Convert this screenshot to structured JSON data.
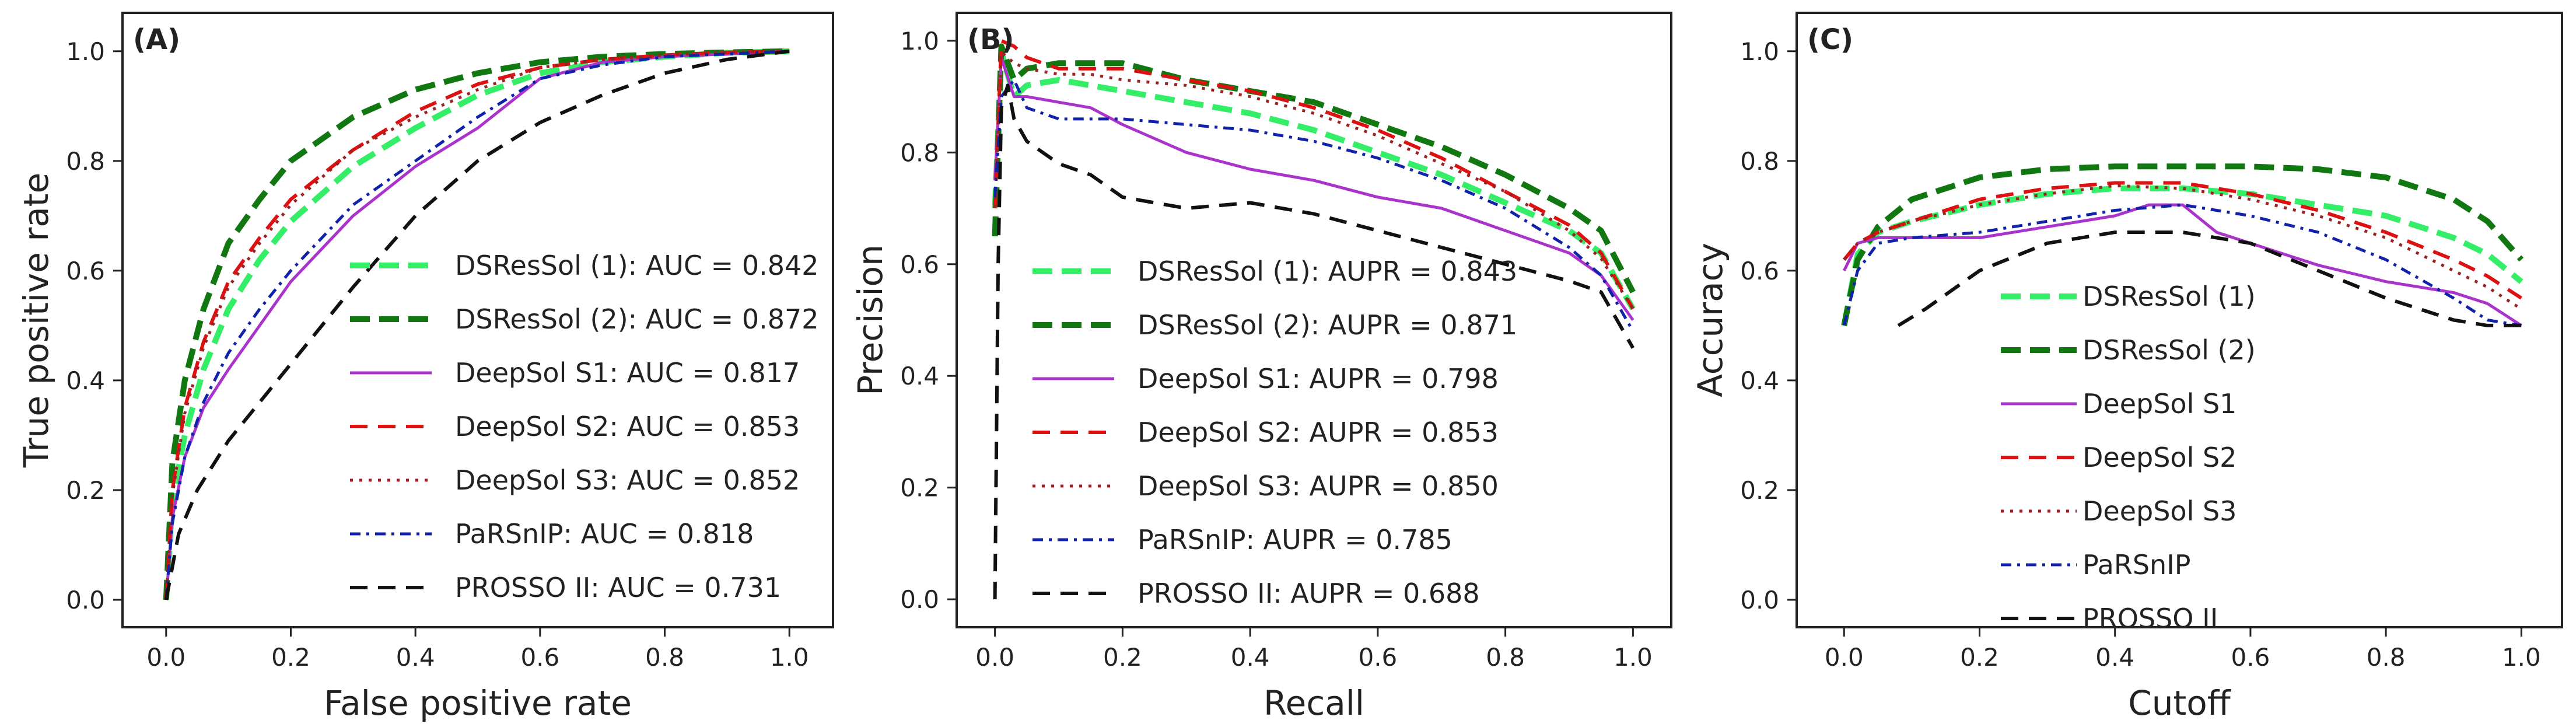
{
  "chart_data": [
    {
      "type": "line",
      "panel": "(A)",
      "xlabel": "False positive rate",
      "ylabel": "True positive rate",
      "xlim": [
        -0.07,
        1.07
      ],
      "ylim": [
        -0.05,
        1.07
      ],
      "xticks": [
        "0.0",
        "0.2",
        "0.4",
        "0.6",
        "0.8",
        "1.0"
      ],
      "yticks": [
        "0.0",
        "0.2",
        "0.4",
        "0.6",
        "0.8",
        "1.0"
      ],
      "legend_position": "bottom-right",
      "series": [
        {
          "name": "DSResSol (1)",
          "label": "DSResSol (1): AUC = 0.842",
          "color": "#33ee66",
          "style": "dash-thick",
          "x": [
            0,
            0.01,
            0.03,
            0.06,
            0.1,
            0.15,
            0.2,
            0.3,
            0.4,
            0.5,
            0.6,
            0.7,
            0.8,
            0.9,
            1.0
          ],
          "y": [
            0,
            0.18,
            0.3,
            0.42,
            0.53,
            0.62,
            0.69,
            0.79,
            0.86,
            0.92,
            0.96,
            0.98,
            0.99,
            0.997,
            1.0
          ]
        },
        {
          "name": "DSResSol (2)",
          "label": "DSResSol (2): AUC = 0.872",
          "color": "#117711",
          "style": "dash-thick",
          "x": [
            0,
            0.01,
            0.03,
            0.06,
            0.1,
            0.15,
            0.2,
            0.3,
            0.4,
            0.5,
            0.6,
            0.7,
            0.8,
            0.9,
            1.0
          ],
          "y": [
            0,
            0.25,
            0.4,
            0.53,
            0.65,
            0.73,
            0.8,
            0.88,
            0.93,
            0.96,
            0.98,
            0.99,
            0.995,
            0.998,
            1.0
          ]
        },
        {
          "name": "DeepSol S1",
          "label": "DeepSol S1: AUC = 0.817",
          "color": "#aa33cc",
          "style": "solid",
          "x": [
            0,
            0.01,
            0.03,
            0.06,
            0.1,
            0.15,
            0.2,
            0.3,
            0.4,
            0.5,
            0.6,
            0.7,
            0.8,
            0.9,
            1.0
          ],
          "y": [
            0,
            0.15,
            0.26,
            0.35,
            0.42,
            0.5,
            0.58,
            0.7,
            0.79,
            0.86,
            0.95,
            0.98,
            0.99,
            0.995,
            1.0
          ]
        },
        {
          "name": "DeepSol S2",
          "label": "DeepSol S2: AUC = 0.853",
          "color": "#dd1111",
          "style": "dash",
          "x": [
            0,
            0.01,
            0.03,
            0.06,
            0.1,
            0.15,
            0.2,
            0.3,
            0.4,
            0.5,
            0.6,
            0.7,
            0.8,
            0.9,
            1.0
          ],
          "y": [
            0,
            0.2,
            0.35,
            0.47,
            0.58,
            0.66,
            0.73,
            0.82,
            0.89,
            0.94,
            0.97,
            0.985,
            0.993,
            0.998,
            1.0
          ]
        },
        {
          "name": "DeepSol S3",
          "label": "DeepSol S3: AUC = 0.852",
          "color": "#992222",
          "style": "dot",
          "x": [
            0,
            0.01,
            0.03,
            0.06,
            0.1,
            0.15,
            0.2,
            0.3,
            0.4,
            0.5,
            0.6,
            0.7,
            0.8,
            0.9,
            1.0
          ],
          "y": [
            0,
            0.19,
            0.34,
            0.46,
            0.57,
            0.65,
            0.72,
            0.82,
            0.88,
            0.93,
            0.97,
            0.985,
            0.993,
            0.998,
            1.0
          ]
        },
        {
          "name": "PaRSnIP",
          "label": "PaRSnIP: AUC = 0.818",
          "color": "#1122aa",
          "style": "dashdot",
          "x": [
            0,
            0.01,
            0.03,
            0.06,
            0.1,
            0.15,
            0.2,
            0.3,
            0.4,
            0.5,
            0.6,
            0.7,
            0.8,
            0.9,
            1.0
          ],
          "y": [
            0,
            0.14,
            0.26,
            0.36,
            0.45,
            0.53,
            0.6,
            0.72,
            0.8,
            0.88,
            0.95,
            0.975,
            0.99,
            0.995,
            1.0
          ]
        },
        {
          "name": "PROSSO II",
          "label": "PROSSO II: AUC = 0.731",
          "color": "#111111",
          "style": "dash",
          "x": [
            0,
            0.02,
            0.05,
            0.1,
            0.15,
            0.2,
            0.3,
            0.4,
            0.5,
            0.6,
            0.7,
            0.8,
            0.9,
            1.0
          ],
          "y": [
            0,
            0.12,
            0.2,
            0.29,
            0.36,
            0.43,
            0.57,
            0.7,
            0.8,
            0.87,
            0.92,
            0.96,
            0.985,
            1.0
          ]
        }
      ]
    },
    {
      "type": "line",
      "panel": "(B)",
      "xlabel": "Recall",
      "ylabel": "Precision",
      "xlim": [
        -0.06,
        1.06
      ],
      "ylim": [
        -0.05,
        1.05
      ],
      "xticks": [
        "0.0",
        "0.2",
        "0.4",
        "0.6",
        "0.8",
        "1.0"
      ],
      "yticks": [
        "0.0",
        "0.2",
        "0.4",
        "0.6",
        "0.8",
        "1.0"
      ],
      "legend_position": "bottom-left",
      "series": [
        {
          "name": "DSResSol (1)",
          "label": "DSResSol (1): AUPR = 0.843",
          "color": "#33ee66",
          "style": "dash-thick",
          "x": [
            0.0,
            0.01,
            0.03,
            0.05,
            0.1,
            0.15,
            0.2,
            0.3,
            0.4,
            0.5,
            0.6,
            0.7,
            0.8,
            0.9,
            0.95,
            1.0
          ],
          "y": [
            0.7,
            0.98,
            0.9,
            0.92,
            0.93,
            0.92,
            0.91,
            0.89,
            0.87,
            0.84,
            0.8,
            0.76,
            0.71,
            0.66,
            0.62,
            0.52
          ]
        },
        {
          "name": "DSResSol (2)",
          "label": "DSResSol (2): AUPR = 0.871",
          "color": "#117711",
          "style": "dash-thick",
          "x": [
            0.0,
            0.01,
            0.03,
            0.05,
            0.1,
            0.15,
            0.2,
            0.3,
            0.4,
            0.5,
            0.6,
            0.7,
            0.8,
            0.9,
            0.95,
            1.0
          ],
          "y": [
            0.65,
            0.99,
            0.93,
            0.95,
            0.96,
            0.96,
            0.96,
            0.93,
            0.91,
            0.89,
            0.85,
            0.81,
            0.76,
            0.7,
            0.66,
            0.55
          ]
        },
        {
          "name": "DeepSol S1",
          "label": "DeepSol S1: AUPR = 0.798",
          "color": "#aa33cc",
          "style": "solid",
          "x": [
            0.0,
            0.01,
            0.03,
            0.05,
            0.1,
            0.15,
            0.2,
            0.3,
            0.4,
            0.5,
            0.6,
            0.7,
            0.8,
            0.9,
            0.95,
            1.0
          ],
          "y": [
            0.75,
            0.97,
            0.9,
            0.9,
            0.89,
            0.88,
            0.85,
            0.8,
            0.77,
            0.75,
            0.72,
            0.7,
            0.66,
            0.62,
            0.58,
            0.5
          ]
        },
        {
          "name": "DeepSol S2",
          "label": "DeepSol S2: AUPR = 0.853",
          "color": "#dd1111",
          "style": "dash",
          "x": [
            0.0,
            0.01,
            0.03,
            0.05,
            0.1,
            0.15,
            0.2,
            0.3,
            0.4,
            0.5,
            0.6,
            0.7,
            0.8,
            0.9,
            0.95,
            1.0
          ],
          "y": [
            0.7,
            1.0,
            0.99,
            0.97,
            0.95,
            0.95,
            0.95,
            0.93,
            0.91,
            0.88,
            0.84,
            0.79,
            0.73,
            0.67,
            0.62,
            0.52
          ]
        },
        {
          "name": "DeepSol S3",
          "label": "DeepSol S3: AUPR = 0.850",
          "color": "#992222",
          "style": "dot",
          "x": [
            0.0,
            0.01,
            0.03,
            0.05,
            0.1,
            0.15,
            0.2,
            0.3,
            0.4,
            0.5,
            0.6,
            0.7,
            0.8,
            0.9,
            0.95,
            1.0
          ],
          "y": [
            0.7,
            0.98,
            0.96,
            0.95,
            0.94,
            0.94,
            0.93,
            0.92,
            0.9,
            0.87,
            0.83,
            0.78,
            0.73,
            0.66,
            0.61,
            0.52
          ]
        },
        {
          "name": "PaRSnIP",
          "label": "PaRSnIP: AUPR = 0.785",
          "color": "#1122aa",
          "style": "dashdot",
          "x": [
            0.0,
            0.01,
            0.03,
            0.05,
            0.1,
            0.15,
            0.2,
            0.3,
            0.4,
            0.5,
            0.6,
            0.7,
            0.8,
            0.9,
            0.95,
            1.0
          ],
          "y": [
            0.72,
            0.9,
            0.93,
            0.88,
            0.86,
            0.86,
            0.86,
            0.85,
            0.84,
            0.82,
            0.79,
            0.75,
            0.7,
            0.63,
            0.58,
            0.48
          ]
        },
        {
          "name": "PROSSO II",
          "label": "PROSSO II: AUPR = 0.688",
          "color": "#111111",
          "style": "dash",
          "x": [
            0.0,
            0.005,
            0.01,
            0.02,
            0.03,
            0.05,
            0.1,
            0.15,
            0.2,
            0.3,
            0.4,
            0.5,
            0.6,
            0.7,
            0.8,
            0.9,
            0.95,
            1.0
          ],
          "y": [
            0.0,
            0.6,
            0.88,
            0.92,
            0.86,
            0.82,
            0.78,
            0.76,
            0.72,
            0.7,
            0.71,
            0.69,
            0.66,
            0.63,
            0.6,
            0.57,
            0.55,
            0.45
          ]
        }
      ]
    },
    {
      "type": "line",
      "panel": "(C)",
      "xlabel": "Cutoff",
      "ylabel": "Accuracy",
      "xlim": [
        -0.07,
        1.06
      ],
      "ylim": [
        -0.05,
        1.07
      ],
      "xticks": [
        "0.0",
        "0.2",
        "0.4",
        "0.6",
        "0.8",
        "1.0"
      ],
      "yticks": [
        "0.0",
        "0.2",
        "0.4",
        "0.6",
        "0.8",
        "1.0"
      ],
      "legend_position": "bottom-left",
      "series": [
        {
          "name": "DSResSol (1)",
          "label": "DSResSol (1)",
          "color": "#33ee66",
          "style": "dash-thick",
          "x": [
            0.0,
            0.02,
            0.05,
            0.1,
            0.2,
            0.3,
            0.4,
            0.5,
            0.6,
            0.7,
            0.8,
            0.9,
            0.95,
            1.0
          ],
          "y": [
            0.5,
            0.63,
            0.67,
            0.69,
            0.72,
            0.74,
            0.75,
            0.75,
            0.74,
            0.72,
            0.7,
            0.66,
            0.63,
            0.58
          ]
        },
        {
          "name": "DSResSol (2)",
          "label": "DSResSol (2)",
          "color": "#117711",
          "style": "dash-thick",
          "x": [
            0.0,
            0.02,
            0.05,
            0.1,
            0.2,
            0.3,
            0.4,
            0.5,
            0.6,
            0.7,
            0.8,
            0.9,
            0.95,
            1.0
          ],
          "y": [
            0.5,
            0.62,
            0.68,
            0.73,
            0.77,
            0.785,
            0.79,
            0.79,
            0.79,
            0.785,
            0.77,
            0.73,
            0.69,
            0.62
          ]
        },
        {
          "name": "DeepSol S1",
          "label": "DeepSol S1",
          "color": "#aa33cc",
          "style": "solid",
          "x": [
            0.0,
            0.02,
            0.05,
            0.1,
            0.2,
            0.3,
            0.4,
            0.45,
            0.5,
            0.55,
            0.6,
            0.7,
            0.8,
            0.9,
            0.95,
            1.0
          ],
          "y": [
            0.6,
            0.65,
            0.66,
            0.66,
            0.66,
            0.68,
            0.7,
            0.72,
            0.72,
            0.67,
            0.65,
            0.61,
            0.58,
            0.56,
            0.54,
            0.5
          ]
        },
        {
          "name": "DeepSol S2",
          "label": "DeepSol S2",
          "color": "#dd1111",
          "style": "dash",
          "x": [
            0.0,
            0.02,
            0.05,
            0.1,
            0.2,
            0.3,
            0.4,
            0.5,
            0.6,
            0.7,
            0.8,
            0.9,
            0.95,
            1.0
          ],
          "y": [
            0.62,
            0.65,
            0.67,
            0.69,
            0.73,
            0.75,
            0.76,
            0.76,
            0.74,
            0.71,
            0.67,
            0.62,
            0.59,
            0.55
          ]
        },
        {
          "name": "DeepSol S3",
          "label": "DeepSol S3",
          "color": "#992222",
          "style": "dot",
          "x": [
            0.0,
            0.02,
            0.05,
            0.1,
            0.2,
            0.3,
            0.4,
            0.5,
            0.6,
            0.7,
            0.8,
            0.9,
            0.95,
            1.0
          ],
          "y": [
            0.62,
            0.65,
            0.67,
            0.69,
            0.72,
            0.74,
            0.755,
            0.75,
            0.73,
            0.7,
            0.66,
            0.6,
            0.57,
            0.53
          ]
        },
        {
          "name": "PaRSnIP",
          "label": "PaRSnIP",
          "color": "#1122aa",
          "style": "dashdot",
          "x": [
            0.0,
            0.02,
            0.05,
            0.1,
            0.2,
            0.3,
            0.4,
            0.5,
            0.6,
            0.7,
            0.8,
            0.9,
            0.95,
            1.0
          ],
          "y": [
            0.5,
            0.6,
            0.65,
            0.66,
            0.67,
            0.69,
            0.71,
            0.72,
            0.7,
            0.67,
            0.62,
            0.55,
            0.51,
            0.5
          ]
        },
        {
          "name": "PROSSO II",
          "label": "PROSSO II",
          "color": "#111111",
          "style": "dash",
          "x": [
            0.08,
            0.12,
            0.2,
            0.3,
            0.4,
            0.5,
            0.6,
            0.7,
            0.8,
            0.9,
            0.95,
            1.0
          ],
          "y": [
            0.5,
            0.53,
            0.6,
            0.65,
            0.67,
            0.67,
            0.65,
            0.6,
            0.55,
            0.51,
            0.5,
            0.5
          ]
        }
      ]
    }
  ]
}
